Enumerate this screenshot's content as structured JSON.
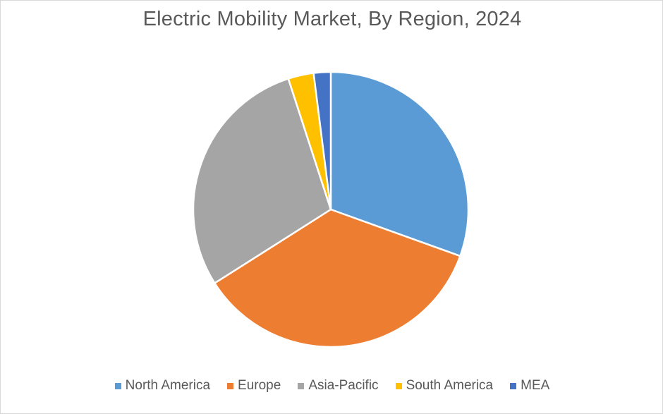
{
  "chart_data": {
    "type": "pie",
    "title": "Electric Mobility Market, By Region, 2024",
    "legend_position": "bottom",
    "start_angle_deg": 0,
    "direction": "clockwise",
    "slices": [
      {
        "label": "North America",
        "value": 30.5,
        "color": "#5b9bd5"
      },
      {
        "label": "Europe",
        "value": 35.5,
        "color": "#ed7d31"
      },
      {
        "label": "Asia-Pacific",
        "value": 29.0,
        "color": "#a5a5a5"
      },
      {
        "label": "South America",
        "value": 3.0,
        "color": "#ffc000"
      },
      {
        "label": "MEA",
        "value": 2.0,
        "color": "#4472c4"
      }
    ]
  }
}
